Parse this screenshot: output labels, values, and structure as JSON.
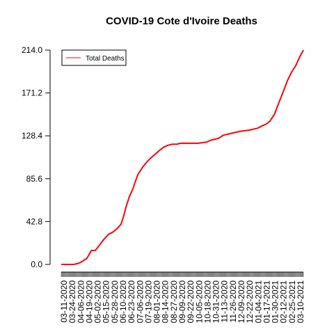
{
  "chart_data": {
    "type": "line",
    "title": "COVID-19 Cote d'Ivoire Deaths",
    "xlabel": "",
    "ylabel": "",
    "ylim": [
      0,
      214
    ],
    "yticks": [
      0.0,
      42.8,
      85.6,
      128.4,
      171.2,
      214.0
    ],
    "ytick_labels": [
      "0.0",
      "42.8",
      "85.6",
      "128.4",
      "171.2",
      "214.0"
    ],
    "xtick_labels": [
      "03-11-2020",
      "03-24-2020",
      "04-06-2020",
      "04-19-2020",
      "05-02-2020",
      "05-15-2020",
      "05-28-2020",
      "06-10-2020",
      "06-23-2020",
      "07-06-2020",
      "07-19-2020",
      "08-01-2020",
      "08-14-2020",
      "08-27-2020",
      "09-09-2020",
      "09-22-2020",
      "10-05-2020",
      "10-18-2020",
      "10-31-2020",
      "11-13-2020",
      "11-26-2020",
      "12-09-2020",
      "12-22-2020",
      "01-04-2021",
      "01-17-2021",
      "01-30-2021",
      "02-12-2021",
      "02-25-2021",
      "03-10-2021"
    ],
    "x_range": [
      "2020-03-11",
      "2021-03-15"
    ],
    "grid": false,
    "legend_position": "top-left",
    "series": [
      {
        "name": "Total Deaths",
        "color": "#ff0000",
        "x": [
          "2020-03-11",
          "2020-03-30",
          "2020-04-06",
          "2020-04-12",
          "2020-04-19",
          "2020-04-26",
          "2020-05-02",
          "2020-05-08",
          "2020-05-15",
          "2020-05-22",
          "2020-05-28",
          "2020-06-03",
          "2020-06-10",
          "2020-06-14",
          "2020-06-18",
          "2020-06-23",
          "2020-06-28",
          "2020-07-02",
          "2020-07-06",
          "2020-07-13",
          "2020-07-19",
          "2020-07-25",
          "2020-08-01",
          "2020-08-08",
          "2020-08-14",
          "2020-08-21",
          "2020-08-27",
          "2020-09-03",
          "2020-09-09",
          "2020-09-22",
          "2020-10-05",
          "2020-10-18",
          "2020-10-25",
          "2020-10-31",
          "2020-11-06",
          "2020-11-13",
          "2020-11-26",
          "2020-12-09",
          "2020-12-22",
          "2021-01-04",
          "2021-01-10",
          "2021-01-17",
          "2021-01-23",
          "2021-01-30",
          "2021-02-06",
          "2021-02-12",
          "2021-02-19",
          "2021-02-25",
          "2021-03-03",
          "2021-03-10",
          "2021-03-15"
        ],
        "y": [
          0,
          0,
          1,
          3,
          6,
          14,
          14,
          19,
          25,
          30,
          32,
          35,
          40,
          48,
          58,
          68,
          75,
          83,
          90,
          97,
          102,
          106,
          110,
          114,
          117,
          119,
          120,
          120,
          121,
          121,
          121,
          122,
          124,
          125,
          126,
          129,
          131,
          133,
          134,
          136,
          138,
          140,
          143,
          150,
          162,
          172,
          184,
          192,
          198,
          208,
          214
        ]
      }
    ]
  }
}
